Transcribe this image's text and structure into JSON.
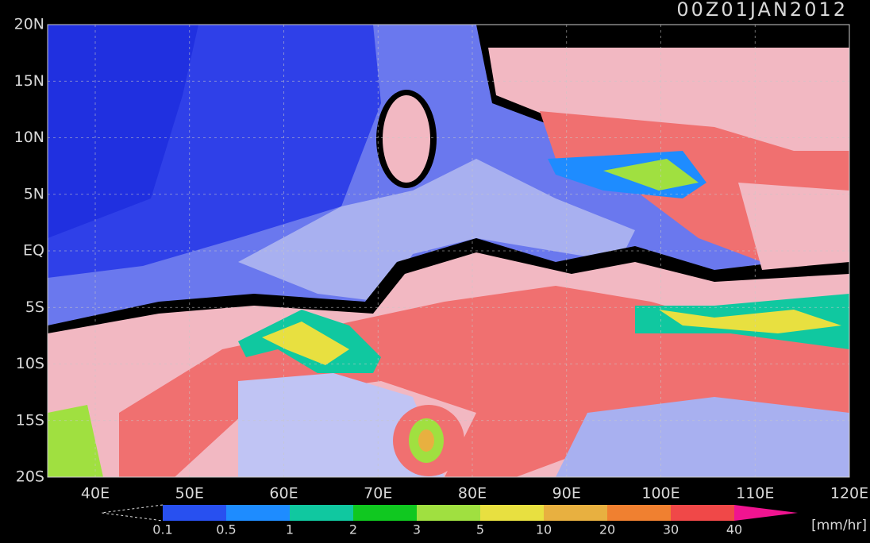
{
  "title": "00Z01JAN2012",
  "lat_labels": [
    "20N",
    "15N",
    "10N",
    "5N",
    "EQ",
    "5S",
    "10S",
    "15S",
    "20S"
  ],
  "lon_labels": [
    "40E",
    "50E",
    "60E",
    "70E",
    "80E",
    "90E",
    "100E",
    "110E",
    "120E"
  ],
  "colorbar": {
    "labels": [
      "0.1",
      "0.5",
      "1",
      "2",
      "3",
      "5",
      "10",
      "20",
      "30",
      "40"
    ],
    "colors": [
      "#2850f0",
      "#1e8cff",
      "#10c8a0",
      "#10c820",
      "#a0e040",
      "#e8e040",
      "#e8b040",
      "#f08030",
      "#f04848",
      "#f01490"
    ],
    "unit": "[mm/hr]"
  }
}
